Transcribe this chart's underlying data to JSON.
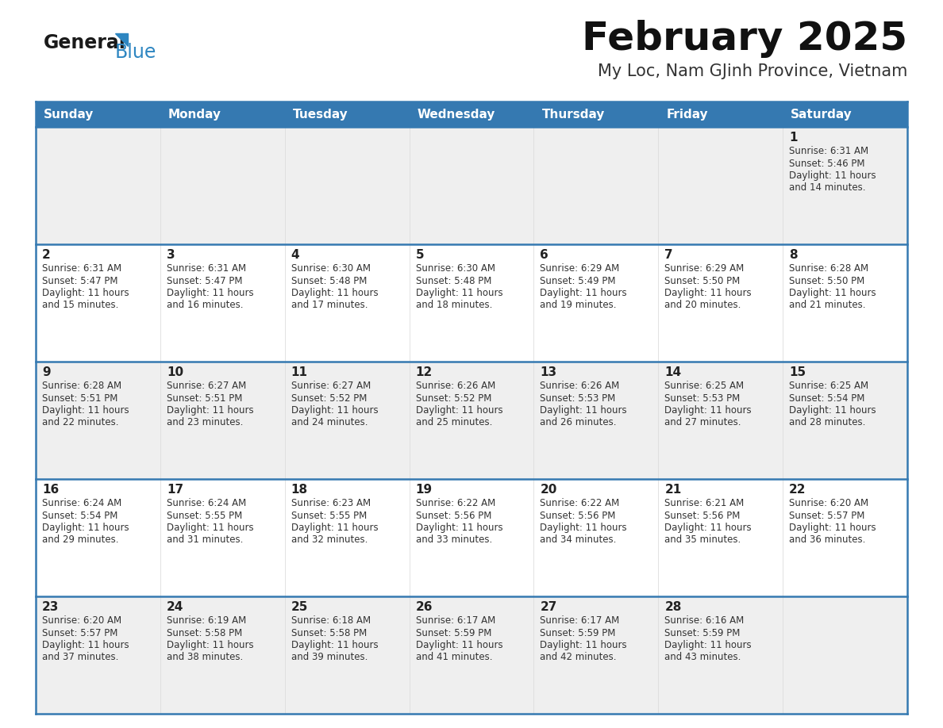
{
  "title": "February 2025",
  "subtitle": "My Loc, Nam GJinh Province, Vietnam",
  "header_bg": "#3579B1",
  "header_text_color": "#FFFFFF",
  "days_of_week": [
    "Sunday",
    "Monday",
    "Tuesday",
    "Wednesday",
    "Thursday",
    "Friday",
    "Saturday"
  ],
  "cell_bg_odd": "#EFEFEF",
  "cell_bg_even": "#FFFFFF",
  "separator_color": "#3579B1",
  "text_color": "#333333",
  "day_num_color": "#222222",
  "calendar": [
    [
      null,
      null,
      null,
      null,
      null,
      null,
      1
    ],
    [
      2,
      3,
      4,
      5,
      6,
      7,
      8
    ],
    [
      9,
      10,
      11,
      12,
      13,
      14,
      15
    ],
    [
      16,
      17,
      18,
      19,
      20,
      21,
      22
    ],
    [
      23,
      24,
      25,
      26,
      27,
      28,
      null
    ]
  ],
  "cell_data": {
    "1": {
      "sunrise": "6:31 AM",
      "sunset": "5:46 PM",
      "daylight_hours": 11,
      "daylight_minutes": 14
    },
    "2": {
      "sunrise": "6:31 AM",
      "sunset": "5:47 PM",
      "daylight_hours": 11,
      "daylight_minutes": 15
    },
    "3": {
      "sunrise": "6:31 AM",
      "sunset": "5:47 PM",
      "daylight_hours": 11,
      "daylight_minutes": 16
    },
    "4": {
      "sunrise": "6:30 AM",
      "sunset": "5:48 PM",
      "daylight_hours": 11,
      "daylight_minutes": 17
    },
    "5": {
      "sunrise": "6:30 AM",
      "sunset": "5:48 PM",
      "daylight_hours": 11,
      "daylight_minutes": 18
    },
    "6": {
      "sunrise": "6:29 AM",
      "sunset": "5:49 PM",
      "daylight_hours": 11,
      "daylight_minutes": 19
    },
    "7": {
      "sunrise": "6:29 AM",
      "sunset": "5:50 PM",
      "daylight_hours": 11,
      "daylight_minutes": 20
    },
    "8": {
      "sunrise": "6:28 AM",
      "sunset": "5:50 PM",
      "daylight_hours": 11,
      "daylight_minutes": 21
    },
    "9": {
      "sunrise": "6:28 AM",
      "sunset": "5:51 PM",
      "daylight_hours": 11,
      "daylight_minutes": 22
    },
    "10": {
      "sunrise": "6:27 AM",
      "sunset": "5:51 PM",
      "daylight_hours": 11,
      "daylight_minutes": 23
    },
    "11": {
      "sunrise": "6:27 AM",
      "sunset": "5:52 PM",
      "daylight_hours": 11,
      "daylight_minutes": 24
    },
    "12": {
      "sunrise": "6:26 AM",
      "sunset": "5:52 PM",
      "daylight_hours": 11,
      "daylight_minutes": 25
    },
    "13": {
      "sunrise": "6:26 AM",
      "sunset": "5:53 PM",
      "daylight_hours": 11,
      "daylight_minutes": 26
    },
    "14": {
      "sunrise": "6:25 AM",
      "sunset": "5:53 PM",
      "daylight_hours": 11,
      "daylight_minutes": 27
    },
    "15": {
      "sunrise": "6:25 AM",
      "sunset": "5:54 PM",
      "daylight_hours": 11,
      "daylight_minutes": 28
    },
    "16": {
      "sunrise": "6:24 AM",
      "sunset": "5:54 PM",
      "daylight_hours": 11,
      "daylight_minutes": 29
    },
    "17": {
      "sunrise": "6:24 AM",
      "sunset": "5:55 PM",
      "daylight_hours": 11,
      "daylight_minutes": 31
    },
    "18": {
      "sunrise": "6:23 AM",
      "sunset": "5:55 PM",
      "daylight_hours": 11,
      "daylight_minutes": 32
    },
    "19": {
      "sunrise": "6:22 AM",
      "sunset": "5:56 PM",
      "daylight_hours": 11,
      "daylight_minutes": 33
    },
    "20": {
      "sunrise": "6:22 AM",
      "sunset": "5:56 PM",
      "daylight_hours": 11,
      "daylight_minutes": 34
    },
    "21": {
      "sunrise": "6:21 AM",
      "sunset": "5:56 PM",
      "daylight_hours": 11,
      "daylight_minutes": 35
    },
    "22": {
      "sunrise": "6:20 AM",
      "sunset": "5:57 PM",
      "daylight_hours": 11,
      "daylight_minutes": 36
    },
    "23": {
      "sunrise": "6:20 AM",
      "sunset": "5:57 PM",
      "daylight_hours": 11,
      "daylight_minutes": 37
    },
    "24": {
      "sunrise": "6:19 AM",
      "sunset": "5:58 PM",
      "daylight_hours": 11,
      "daylight_minutes": 38
    },
    "25": {
      "sunrise": "6:18 AM",
      "sunset": "5:58 PM",
      "daylight_hours": 11,
      "daylight_minutes": 39
    },
    "26": {
      "sunrise": "6:17 AM",
      "sunset": "5:59 PM",
      "daylight_hours": 11,
      "daylight_minutes": 41
    },
    "27": {
      "sunrise": "6:17 AM",
      "sunset": "5:59 PM",
      "daylight_hours": 11,
      "daylight_minutes": 42
    },
    "28": {
      "sunrise": "6:16 AM",
      "sunset": "5:59 PM",
      "daylight_hours": 11,
      "daylight_minutes": 43
    }
  },
  "logo_general_color": "#1A1A1A",
  "logo_blue_color": "#2E86C1",
  "title_fontsize": 36,
  "subtitle_fontsize": 15,
  "header_fontsize": 11,
  "day_num_fontsize": 11,
  "cell_text_fontsize": 8.5
}
